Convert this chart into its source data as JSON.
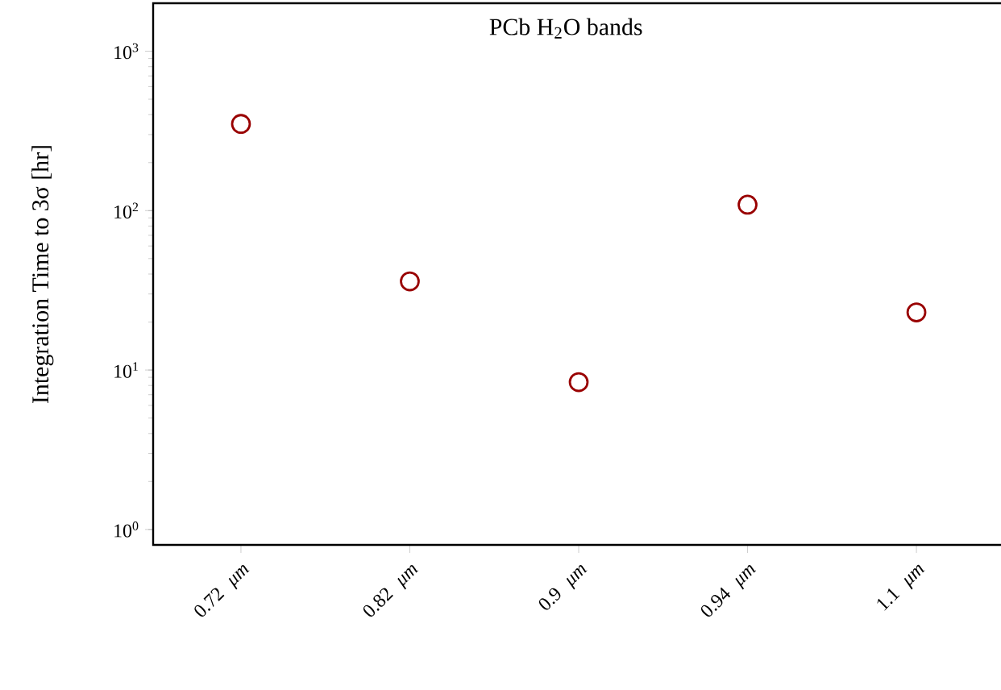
{
  "chart_data": {
    "type": "scatter",
    "title": "PCb H$_{2}$O bands",
    "ylabel": "Integration Time to 3σ [hr]",
    "categories": [
      "0.72 *μm*",
      "0.82 *μm*",
      "0.9 *μm*",
      "0.94 *μm*",
      "1.1 *μm*"
    ],
    "series": [
      {
        "color": "#990000",
        "values": [
          350,
          36,
          8.4,
          109,
          23
        ]
      }
    ],
    "log": "y",
    "ylim": [
      0.8,
      2000
    ],
    "yticks": [
      {
        "value": 1,
        "label": "10$^{0}$"
      },
      {
        "value": 10,
        "label": "10$^{1}$"
      },
      {
        "value": 100,
        "label": "10$^{2}$"
      },
      {
        "value": 1000,
        "label": "10$^{3}$"
      }
    ],
    "marker": "circle"
  }
}
